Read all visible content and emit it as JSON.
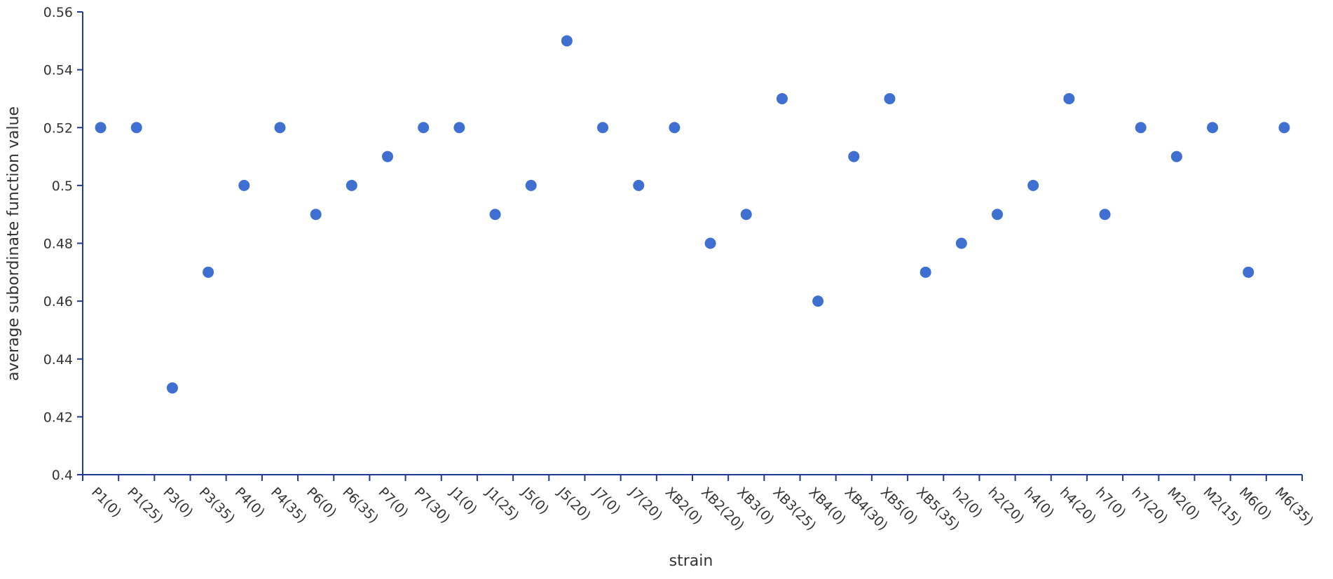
{
  "chart_data": {
    "type": "scatter",
    "x_label": "strain",
    "y_label": "average subordinate function value",
    "categories": [
      "P1(0)",
      "P1(25)",
      "P3(0)",
      "P3(35)",
      "P4(0)",
      "P4(35)",
      "P6(0)",
      "P6(35)",
      "P7(0)",
      "P7(30)",
      "J1(0)",
      "J1(25)",
      "J5(0)",
      "J5(20)",
      "J7(0)",
      "J7(20)",
      "XB2(0)",
      "XB2(20)",
      "XB3(0)",
      "XB3(25)",
      "XB4(0)",
      "XB4(30)",
      "XB5(0)",
      "XB5(35)",
      "h2(0)",
      "h2(20)",
      "h4(0)",
      "h4(20)",
      "h7(0)",
      "h7(20)",
      "M2(0)",
      "M2(15)",
      "M6(0)",
      "M6(35)"
    ],
    "values": [
      0.52,
      0.52,
      0.43,
      0.47,
      0.5,
      0.52,
      0.49,
      0.5,
      0.51,
      0.52,
      0.52,
      0.49,
      0.5,
      0.55,
      0.52,
      0.5,
      0.52,
      0.48,
      0.49,
      0.53,
      0.46,
      0.51,
      0.53,
      0.47,
      0.48,
      0.49,
      0.5,
      0.53,
      0.49,
      0.52,
      0.51,
      0.52,
      0.47,
      0.52
    ],
    "color": "#3f6fd0",
    "ylim": [
      0.4,
      0.56
    ],
    "yticks": [
      0.4,
      0.42,
      0.44,
      0.46,
      0.48,
      0.5,
      0.52,
      0.54,
      0.56
    ],
    "grid": false
  }
}
